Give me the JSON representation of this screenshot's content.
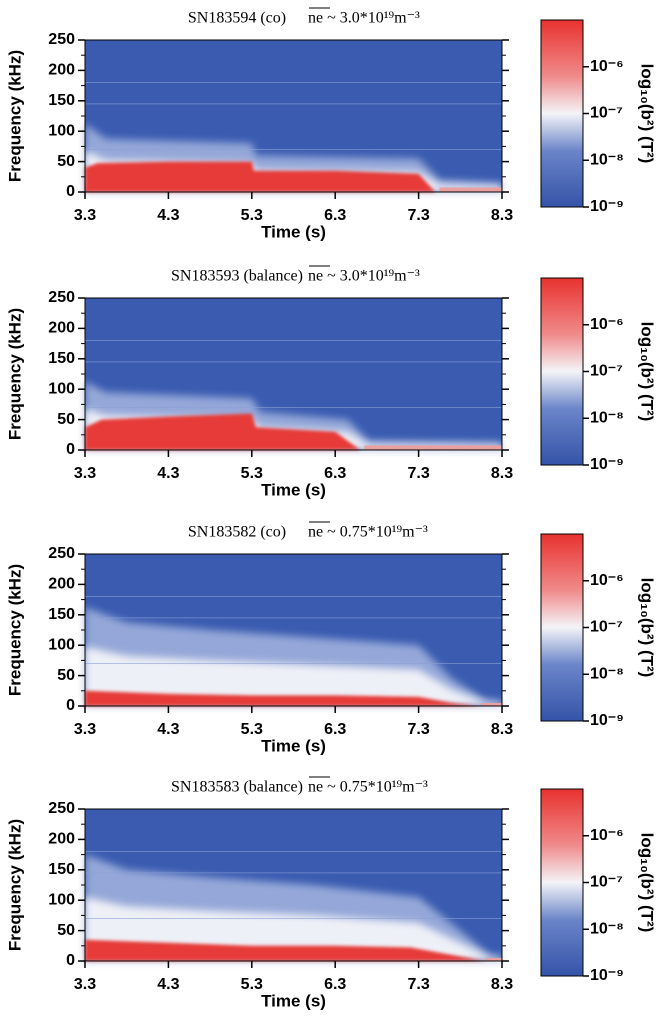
{
  "chart_data": [
    {
      "type": "spectrogram",
      "title": "SN183594 (co)",
      "subtitle": "ne ~ 3.0*10¹⁹m⁻³",
      "xlabel": "Time (s)",
      "ylabel": "Frequency (kHz)",
      "xlim": [
        3.3,
        8.3
      ],
      "xticks": [
        3.3,
        4.3,
        5.3,
        6.3,
        7.3,
        8.3
      ],
      "ylim": [
        0,
        250
      ],
      "yticks": [
        0,
        50,
        100,
        150,
        200,
        250
      ],
      "colorbar": {
        "label": "log₁₀(b²) (T²)",
        "scale": "log",
        "lim": [
          1e-09,
          1e-05
        ],
        "ticks": [
          {
            "value": 1e-06,
            "label": "10⁻⁶"
          },
          {
            "value": 1e-07,
            "label": "10⁻⁷"
          },
          {
            "value": 1e-08,
            "label": "10⁻⁸"
          },
          {
            "value": 1e-09,
            "label": "10⁻⁹"
          }
        ]
      }
    },
    {
      "type": "spectrogram",
      "title": "SN183593 (balance)",
      "subtitle": "ne ~ 3.0*10¹⁹m⁻³",
      "xlabel": "Time (s)",
      "ylabel": "Frequency (kHz)",
      "xlim": [
        3.3,
        8.3
      ],
      "xticks": [
        3.3,
        4.3,
        5.3,
        6.3,
        7.3,
        8.3
      ],
      "ylim": [
        0,
        250
      ],
      "yticks": [
        0,
        50,
        100,
        150,
        200,
        250
      ],
      "colorbar": {
        "label": "log₁₀(b²) (T²)",
        "scale": "log",
        "lim": [
          1e-09,
          1e-05
        ],
        "ticks": [
          {
            "value": 1e-06,
            "label": "10⁻⁶"
          },
          {
            "value": 1e-07,
            "label": "10⁻⁷"
          },
          {
            "value": 1e-08,
            "label": "10⁻⁸"
          },
          {
            "value": 1e-09,
            "label": "10⁻⁹"
          }
        ]
      }
    },
    {
      "type": "spectrogram",
      "title": "SN183582 (co)",
      "subtitle": "ne ~ 0.75*10¹⁹m⁻³",
      "xlabel": "Time (s)",
      "ylabel": "Frequency (kHz)",
      "xlim": [
        3.3,
        8.3
      ],
      "xticks": [
        3.3,
        4.3,
        5.3,
        6.3,
        7.3,
        8.3
      ],
      "ylim": [
        0,
        250
      ],
      "yticks": [
        0,
        50,
        100,
        150,
        200,
        250
      ],
      "colorbar": {
        "label": "log₁₀(b²) (T²)",
        "scale": "log",
        "lim": [
          1e-09,
          1e-05
        ],
        "ticks": [
          {
            "value": 1e-06,
            "label": "10⁻⁶"
          },
          {
            "value": 1e-07,
            "label": "10⁻⁷"
          },
          {
            "value": 1e-08,
            "label": "10⁻⁸"
          },
          {
            "value": 1e-09,
            "label": "10⁻⁹"
          }
        ]
      }
    },
    {
      "type": "spectrogram",
      "title": "SN183583 (balance)",
      "subtitle": "ne ~ 0.75*10¹⁹m⁻³",
      "xlabel": "Time (s)",
      "ylabel": "Frequency (kHz)",
      "xlim": [
        3.3,
        8.3
      ],
      "xticks": [
        3.3,
        4.3,
        5.3,
        6.3,
        7.3,
        8.3
      ],
      "ylim": [
        0,
        250
      ],
      "yticks": [
        0,
        50,
        100,
        150,
        200,
        250
      ],
      "colorbar": {
        "label": "log₁₀(b²) (T²)",
        "scale": "log",
        "lim": [
          1e-09,
          1e-05
        ],
        "ticks": [
          {
            "value": 1e-06,
            "label": "10⁻⁶"
          },
          {
            "value": 1e-07,
            "label": "10⁻⁷"
          },
          {
            "value": 1e-08,
            "label": "10⁻⁸"
          },
          {
            "value": 1e-09,
            "label": "10⁻⁹"
          }
        ]
      }
    }
  ]
}
